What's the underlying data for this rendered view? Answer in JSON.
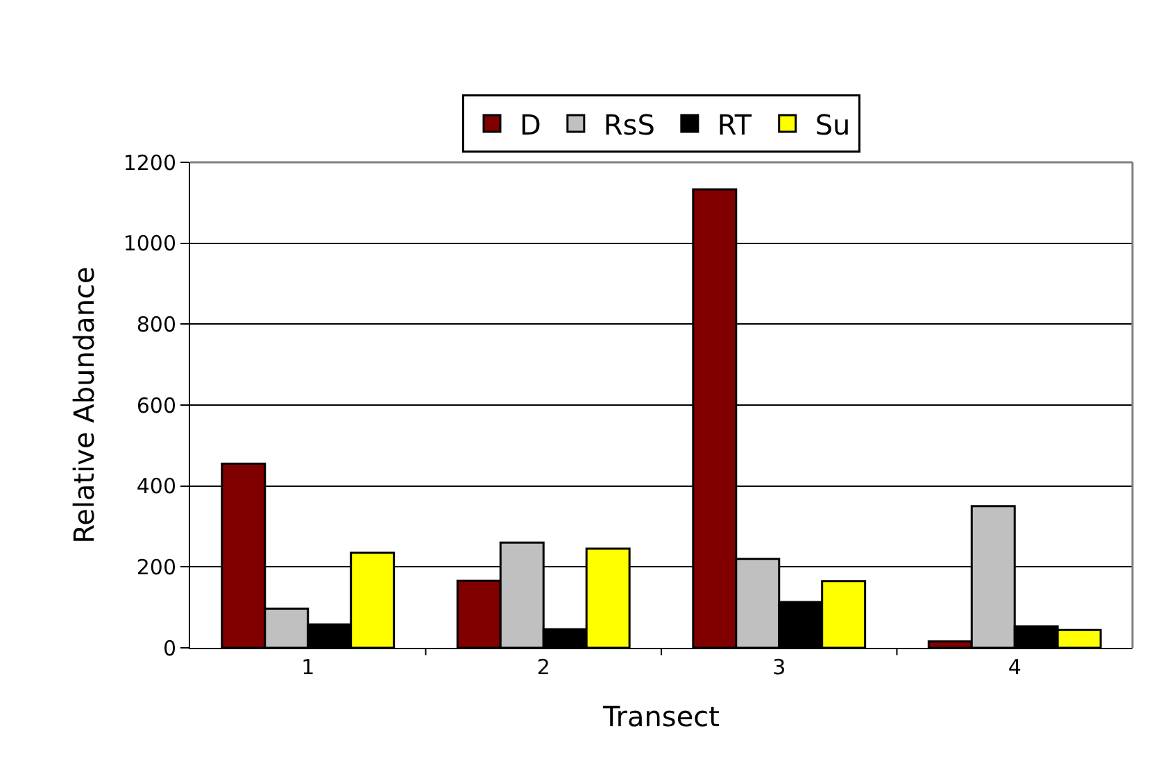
{
  "chart_data": {
    "type": "bar",
    "xlabel": "Transect",
    "ylabel": "Relative Abundance",
    "categories": [
      "1",
      "2",
      "3",
      "4"
    ],
    "series": [
      {
        "name": "D",
        "color": "#800000",
        "values": [
          455,
          166,
          1133,
          16
        ]
      },
      {
        "name": "RsS",
        "color": "#c0c0c0",
        "values": [
          97,
          260,
          220,
          350
        ]
      },
      {
        "name": "RT",
        "color": "#000000",
        "values": [
          58,
          46,
          113,
          53
        ]
      },
      {
        "name": "Su",
        "color": "#ffff00",
        "values": [
          235,
          245,
          165,
          44
        ]
      }
    ],
    "ylim": [
      0,
      1200
    ],
    "yticks": [
      0,
      200,
      400,
      600,
      800,
      1000,
      1200
    ],
    "grid": "y",
    "legend": "top"
  }
}
